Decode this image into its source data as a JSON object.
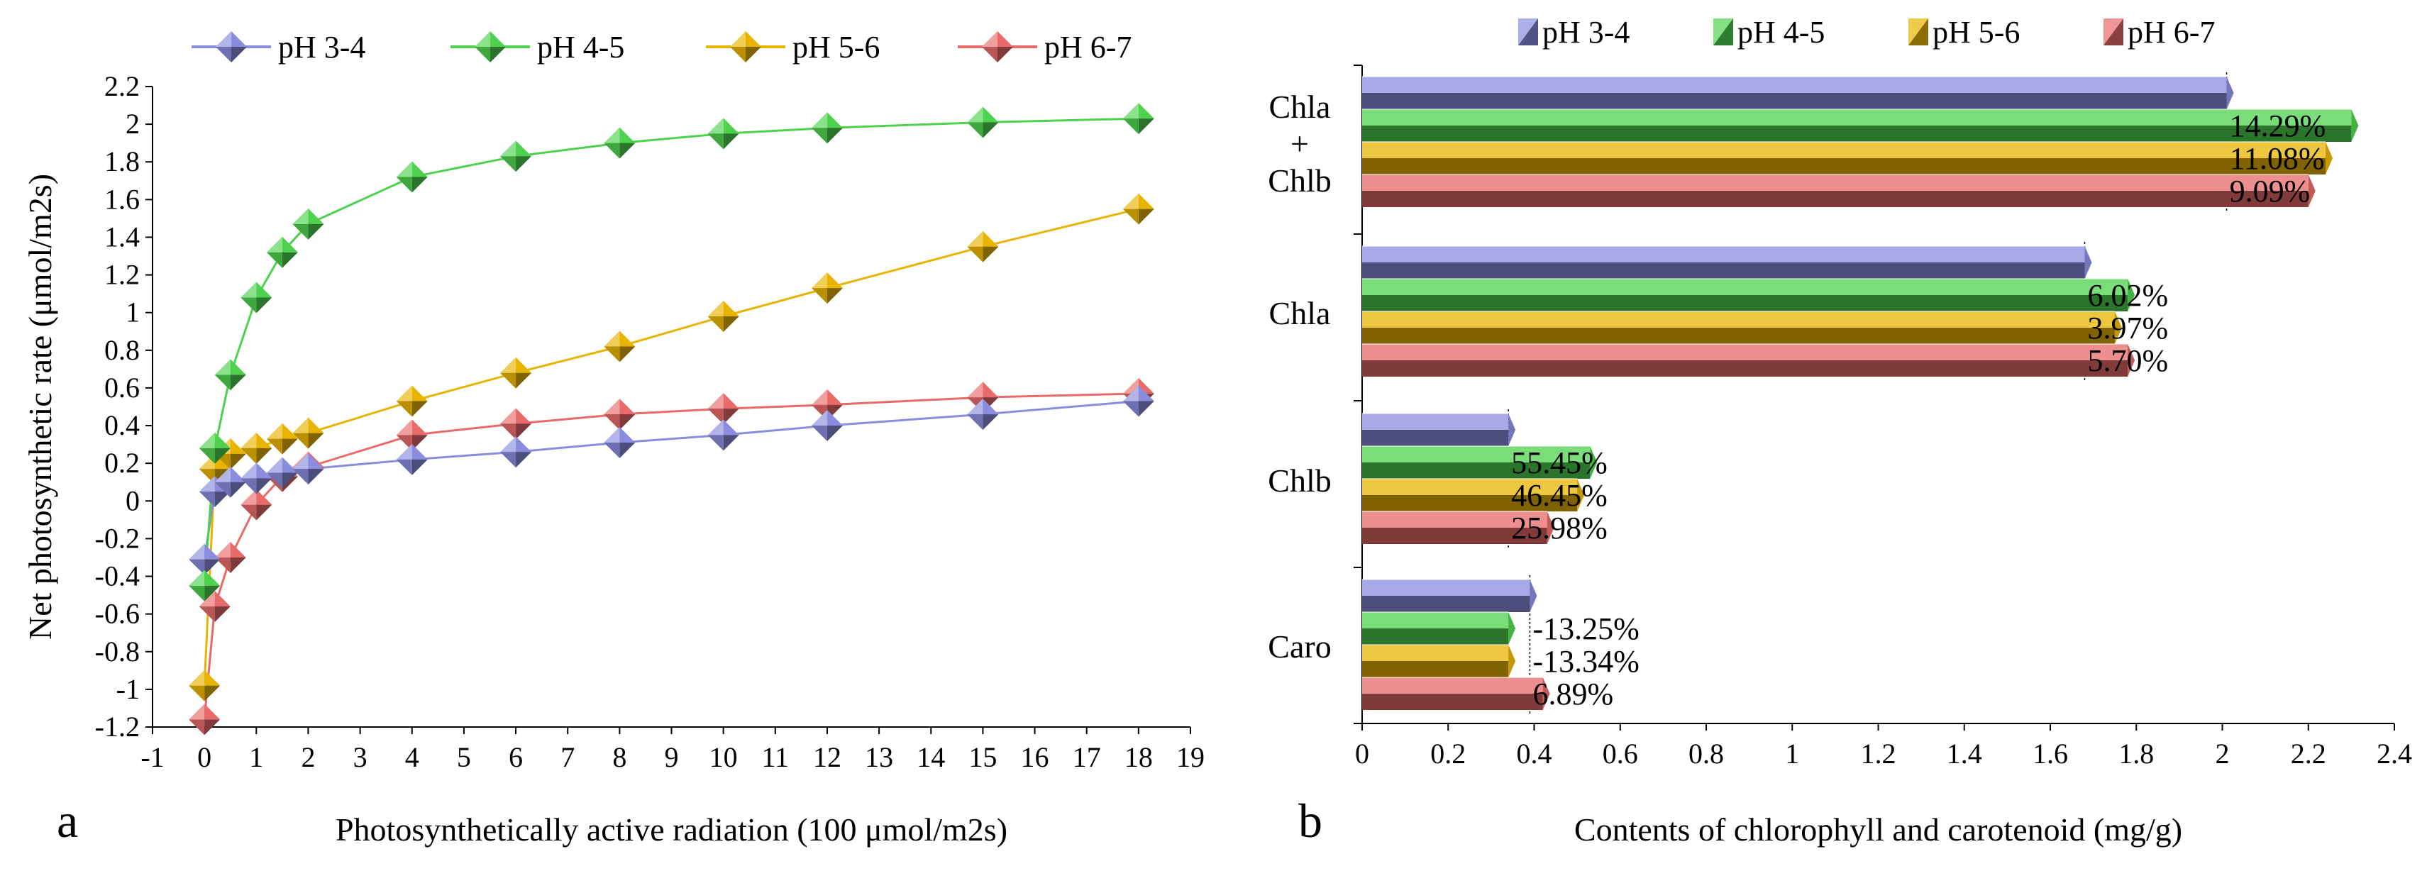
{
  "chart_data": [
    {
      "panel": "a",
      "type": "line",
      "title": "",
      "xlabel": "Photosynthetically active radiation (100 μmol/m2s)",
      "ylabel": "Net photosynthetic rate (μmol/m2s)",
      "xlim": [
        -1,
        19
      ],
      "ylim": [
        -1.2,
        2.2
      ],
      "x_ticks": [
        "-1",
        "0",
        "1",
        "2",
        "3",
        "4",
        "5",
        "6",
        "7",
        "8",
        "9",
        "10",
        "11",
        "12",
        "13",
        "14",
        "15",
        "16",
        "17",
        "18",
        "19"
      ],
      "y_ticks": [
        "-1.2",
        "-1",
        "-0.8",
        "-0.6",
        "-0.4",
        "-0.2",
        "0",
        "0.2",
        "0.4",
        "0.6",
        "0.8",
        "1",
        "1.2",
        "1.4",
        "1.6",
        "1.8",
        "2",
        "2.2"
      ],
      "x": [
        0,
        0.2,
        0.5,
        1,
        1.5,
        2,
        4,
        6,
        8,
        10,
        12,
        15,
        18
      ],
      "legend_position": "top",
      "series": [
        {
          "name": "pH 3-4",
          "color": "#8a8cde",
          "values": [
            -0.31,
            0.05,
            0.1,
            0.12,
            0.15,
            0.17,
            0.22,
            0.26,
            0.31,
            0.35,
            0.4,
            0.46,
            0.53
          ]
        },
        {
          "name": "pH 4-5",
          "color": "#4ed24e",
          "values": [
            -0.45,
            0.28,
            0.67,
            1.08,
            1.32,
            1.47,
            1.72,
            1.83,
            1.9,
            1.95,
            1.98,
            2.01,
            2.03
          ]
        },
        {
          "name": "pH 5-6",
          "color": "#e8b400",
          "values": [
            -0.98,
            0.17,
            0.25,
            0.28,
            0.33,
            0.36,
            0.53,
            0.68,
            0.82,
            0.98,
            1.13,
            1.35,
            1.55
          ]
        },
        {
          "name": "pH 6-7",
          "color": "#e86a6a",
          "values": [
            -1.16,
            -0.56,
            -0.3,
            -0.02,
            0.13,
            0.18,
            0.35,
            0.41,
            0.46,
            0.49,
            0.51,
            0.55,
            0.57
          ]
        }
      ]
    },
    {
      "panel": "b",
      "type": "bar",
      "orientation": "horizontal",
      "title": "",
      "xlabel": "Contents of chlorophyll and carotenoid (mg/g)",
      "ylabel": "",
      "xlim": [
        0,
        2.4
      ],
      "x_ticks": [
        "0",
        "0.2",
        "0.4",
        "0.6",
        "0.8",
        "1",
        "1.2",
        "1.4",
        "1.6",
        "1.8",
        "2",
        "2.2",
        "2.4"
      ],
      "categories": [
        [
          "Chla",
          "+",
          "Chlb"
        ],
        [
          "Chla"
        ],
        [
          "Chlb"
        ],
        [
          "Caro"
        ]
      ],
      "legend_position": "top",
      "series": [
        {
          "name": "pH 3-4",
          "color": "#8a8cde",
          "values": [
            2.01,
            1.68,
            0.34,
            0.39
          ],
          "labels": [
            "",
            "",
            "",
            ""
          ]
        },
        {
          "name": "pH 4-5",
          "color": "#4ed24e",
          "values": [
            2.3,
            1.78,
            0.53,
            0.34
          ],
          "labels": [
            "14.29%",
            "6.02%",
            "55.45%",
            "-13.25%"
          ]
        },
        {
          "name": "pH 5-6",
          "color": "#e8b400",
          "values": [
            2.24,
            1.75,
            0.5,
            0.34
          ],
          "labels": [
            "11.08%",
            "3.97%",
            "46.45%",
            "-13.34%"
          ]
        },
        {
          "name": "pH 6-7",
          "color": "#e86a6a",
          "values": [
            2.2,
            1.78,
            0.43,
            0.42
          ],
          "labels": [
            "9.09%",
            "5.70%",
            "25.98%",
            "6.89%"
          ]
        }
      ]
    }
  ]
}
